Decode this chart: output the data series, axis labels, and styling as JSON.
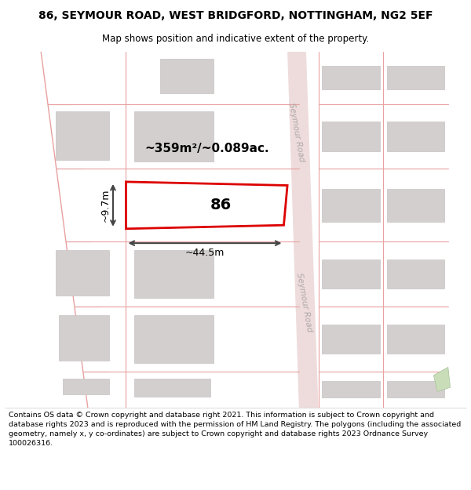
{
  "title_line1": "86, SEYMOUR ROAD, WEST BRIDGFORD, NOTTINGHAM, NG2 5EF",
  "title_line2": "Map shows position and indicative extent of the property.",
  "footer_text": "Contains OS data © Crown copyright and database right 2021. This information is subject to Crown copyright and database rights 2023 and is reproduced with the permission of HM Land Registry. The polygons (including the associated geometry, namely x, y co-ordinates) are subject to Crown copyright and database rights 2023 Ordnance Survey 100026316.",
  "background_color": "#ffffff",
  "map_bg": "#f7f0f0",
  "road_label": "Seymour Road",
  "property_number": "86",
  "area_label": "~359m²/~0.089ac.",
  "width_label": "~44.5m",
  "height_label": "~9.7m",
  "line_color": "#e8a0a0",
  "building_fill": "#d4cfcf",
  "building_edge": "#c8c3c3",
  "road_fill": "#eedcdc",
  "highlight_red": "#dd0000",
  "dim_color": "#444444",
  "road_text_color": "#b0a8a8"
}
